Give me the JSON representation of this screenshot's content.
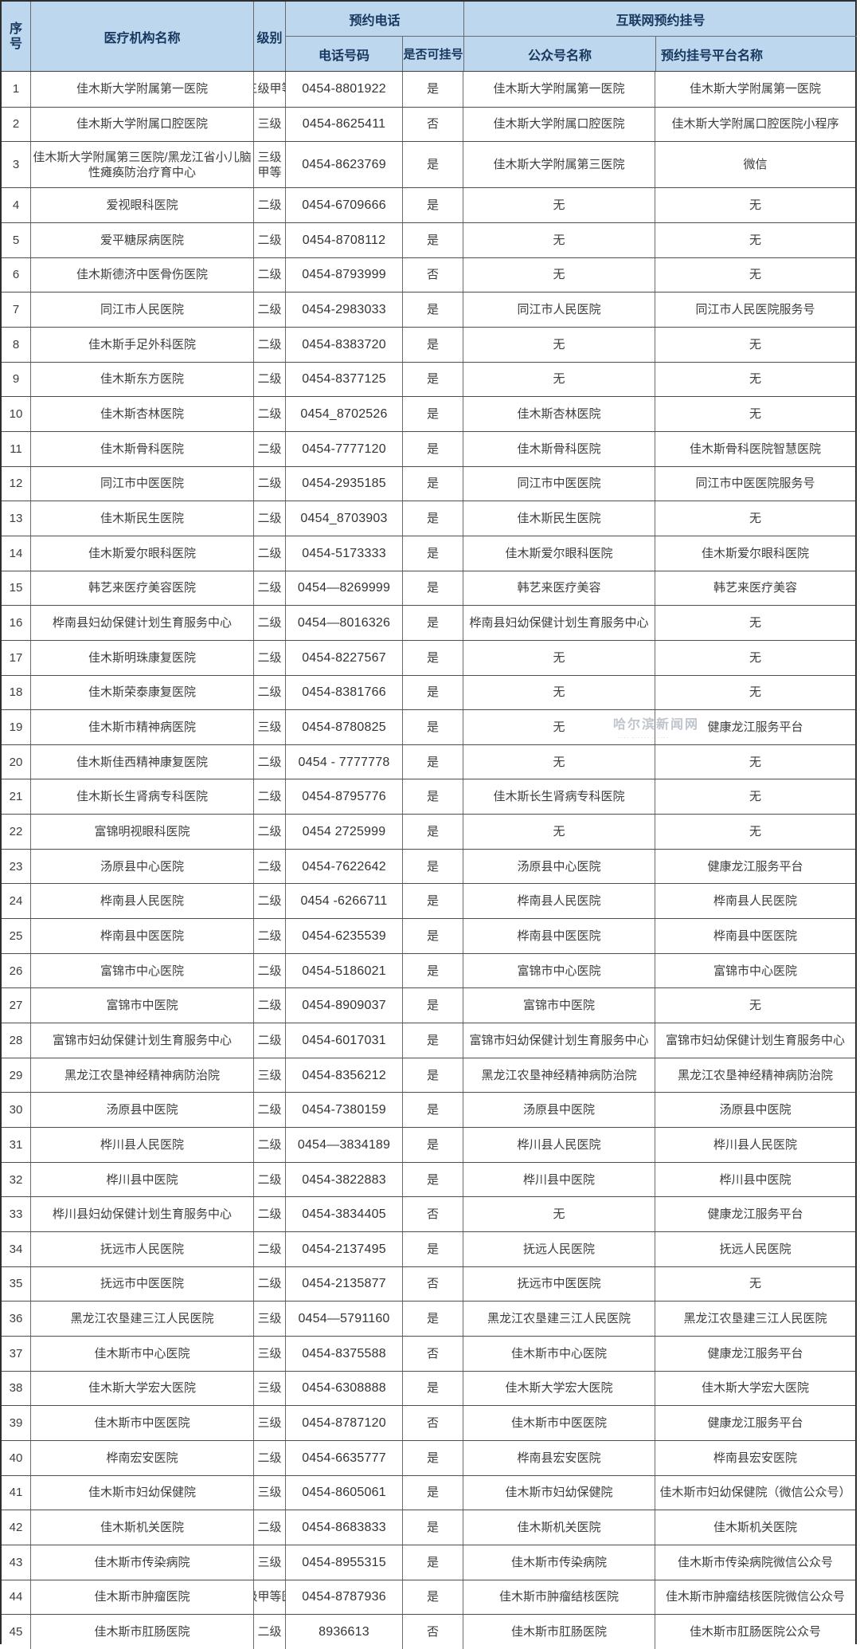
{
  "table": {
    "headers": {
      "no": "序号",
      "name": "医疗机构名称",
      "level": "级别",
      "phone_group": "预约电话",
      "phone": "电话号码",
      "bookable": "是否可挂号",
      "internet_group": "互联网预约挂号",
      "account": "公众号名称",
      "platform": "预约挂号平台名称"
    },
    "rows": [
      {
        "no": "1",
        "name": "佳木斯大学附属第一医院",
        "level": "三级甲等",
        "level_clip": true,
        "phone": "0454-8801922",
        "bookable": "是",
        "account": "佳木斯大学附属第一医院",
        "platform": "佳木斯大学附属第一医院"
      },
      {
        "no": "2",
        "name": "佳木斯大学附属口腔医院",
        "level": "三级",
        "phone": "0454-8625411",
        "bookable": "否",
        "account": "佳木斯大学附属口腔医院",
        "platform": "佳木斯大学附属口腔医院小程序"
      },
      {
        "no": "3",
        "name": "佳木斯大学附属第三医院/黑龙江省小儿脑性瘫痪防治疗育中心",
        "level": "三级甲等",
        "tall": true,
        "phone": "0454-8623769",
        "bookable": "是",
        "account": "佳木斯大学附属第三医院",
        "platform": "微信"
      },
      {
        "no": "4",
        "name": "爱视眼科医院",
        "level": "二级",
        "phone": "0454-6709666",
        "bookable": "是",
        "account": "无",
        "platform": "无"
      },
      {
        "no": "5",
        "name": "爱平糖尿病医院",
        "level": "二级",
        "phone": "0454-8708112",
        "bookable": "是",
        "account": "无",
        "platform": "无"
      },
      {
        "no": "6",
        "name": "佳木斯德济中医骨伤医院",
        "level": "二级",
        "phone": "0454-8793999",
        "bookable": "否",
        "account": "无",
        "platform": "无"
      },
      {
        "no": "7",
        "name": "同江市人民医院",
        "level": "二级",
        "phone": "0454-2983033",
        "bookable": "是",
        "account": "同江市人民医院",
        "platform": "同江市人民医院服务号"
      },
      {
        "no": "8",
        "name": "佳木斯手足外科医院",
        "level": "二级",
        "phone": "0454-8383720",
        "bookable": "是",
        "account": "无",
        "platform": "无"
      },
      {
        "no": "9",
        "name": "佳木斯东方医院",
        "level": "二级",
        "phone": "0454-8377125",
        "bookable": "是",
        "account": "无",
        "platform": "无"
      },
      {
        "no": "10",
        "name": "佳木斯杏林医院",
        "level": "二级",
        "phone": "0454_8702526",
        "bookable": "是",
        "account": "佳木斯杏林医院",
        "platform": "无"
      },
      {
        "no": "11",
        "name": "佳木斯骨科医院",
        "level": "二级",
        "phone": "0454-7777120",
        "bookable": "是",
        "account": "佳木斯骨科医院",
        "platform": "佳木斯骨科医院智慧医院"
      },
      {
        "no": "12",
        "name": "同江市中医医院",
        "level": "二级",
        "phone": "0454-2935185",
        "bookable": "是",
        "account": "同江市中医医院",
        "platform": "同江市中医医院服务号"
      },
      {
        "no": "13",
        "name": "佳木斯民生医院",
        "level": "二级",
        "phone": "0454_8703903",
        "bookable": "是",
        "account": "佳木斯民生医院",
        "platform": "无"
      },
      {
        "no": "14",
        "name": "佳木斯爱尔眼科医院",
        "level": "二级",
        "phone": "0454-5173333",
        "bookable": "是",
        "account": "佳木斯爱尔眼科医院",
        "platform": "佳木斯爱尔眼科医院"
      },
      {
        "no": "15",
        "name": "韩艺来医疗美容医院",
        "level": "二级",
        "phone": "0454—8269999",
        "bookable": "是",
        "account": "韩艺来医疗美容",
        "platform": "韩艺来医疗美容"
      },
      {
        "no": "16",
        "name": "桦南县妇幼保健计划生育服务中心",
        "level": "二级",
        "phone": "0454—8016326",
        "bookable": "是",
        "account": "桦南县妇幼保健计划生育服务中心",
        "platform": "无"
      },
      {
        "no": "17",
        "name": "佳木斯明珠康复医院",
        "level": "二级",
        "phone": "0454-8227567",
        "bookable": "是",
        "account": "无",
        "platform": "无"
      },
      {
        "no": "18",
        "name": "佳木斯荣泰康复医院",
        "level": "二级",
        "phone": "0454-8381766",
        "bookable": "是",
        "account": "无",
        "platform": "无"
      },
      {
        "no": "19",
        "name": "佳木斯市精神病医院",
        "level": "三级",
        "phone": "0454-8780825",
        "bookable": "是",
        "account": "无",
        "platform": "健康龙江服务平台"
      },
      {
        "no": "20",
        "name": "佳木斯佳西精神康复医院",
        "level": "二级",
        "phone": "0454 - 7777778",
        "bookable": "是",
        "account": "无",
        "platform": "无"
      },
      {
        "no": "21",
        "name": "佳木斯长生肾病专科医院",
        "level": "二级",
        "phone": "0454-8795776",
        "bookable": "是",
        "account": "佳木斯长生肾病专科医院",
        "platform": "无"
      },
      {
        "no": "22",
        "name": "富锦明视眼科医院",
        "level": "二级",
        "phone": "0454 2725999",
        "bookable": "是",
        "account": "无",
        "platform": "无"
      },
      {
        "no": "23",
        "name": "汤原县中心医院",
        "level": "二级",
        "phone": "0454-7622642",
        "bookable": "是",
        "account": "汤原县中心医院",
        "platform": "健康龙江服务平台"
      },
      {
        "no": "24",
        "name": "桦南县人民医院",
        "level": "二级",
        "phone": "0454 -6266711",
        "bookable": "是",
        "account": "桦南县人民医院",
        "platform": "桦南县人民医院"
      },
      {
        "no": "25",
        "name": "桦南县中医医院",
        "level": "二级",
        "phone": "0454-6235539",
        "bookable": "是",
        "account": "桦南县中医医院",
        "platform": "桦南县中医医院"
      },
      {
        "no": "26",
        "name": "富锦市中心医院",
        "level": "二级",
        "phone": "0454-5186021",
        "bookable": "是",
        "account": "富锦市中心医院",
        "platform": "富锦市中心医院"
      },
      {
        "no": "27",
        "name": "富锦市中医院",
        "level": "二级",
        "phone": "0454-8909037",
        "bookable": "是",
        "account": "富锦市中医院",
        "platform": "无"
      },
      {
        "no": "28",
        "name": "富锦市妇幼保健计划生育服务中心",
        "level": "二级",
        "phone": "0454-6017031",
        "bookable": "是",
        "account": "富锦市妇幼保健计划生育服务中心",
        "platform": "富锦市妇幼保健计划生育服务中心"
      },
      {
        "no": "29",
        "name": "黑龙江农垦神经精神病防治院",
        "level": "三级",
        "phone": "0454-8356212",
        "bookable": "是",
        "account": "黑龙江农垦神经精神病防治院",
        "platform": "黑龙江农垦神经精神病防治院"
      },
      {
        "no": "30",
        "name": "汤原县中医院",
        "level": "二级",
        "phone": "0454-7380159",
        "bookable": "是",
        "account": "汤原县中医院",
        "platform": "汤原县中医院"
      },
      {
        "no": "31",
        "name": "桦川县人民医院",
        "level": "二级",
        "phone": "0454—3834189",
        "bookable": "是",
        "account": "桦川县人民医院",
        "platform": "桦川县人民医院"
      },
      {
        "no": "32",
        "name": "桦川县中医院",
        "level": "二级",
        "phone": "0454-3822883",
        "bookable": "是",
        "account": "桦川县中医院",
        "platform": "桦川县中医院"
      },
      {
        "no": "33",
        "name": "桦川县妇幼保健计划生育服务中心",
        "level": "二级",
        "phone": "0454-3834405",
        "bookable": "否",
        "account": "无",
        "platform": "健康龙江服务平台"
      },
      {
        "no": "34",
        "name": "抚远市人民医院",
        "level": "二级",
        "phone": "0454-2137495",
        "bookable": "是",
        "account": "抚远人民医院",
        "platform": "抚远人民医院"
      },
      {
        "no": "35",
        "name": "抚远市中医医院",
        "level": "二级",
        "phone": "0454-2135877",
        "bookable": "否",
        "account": "抚远市中医医院",
        "platform": "无"
      },
      {
        "no": "36",
        "name": "黑龙江农垦建三江人民医院",
        "level": "三级",
        "phone": "0454—5791160",
        "bookable": "是",
        "account": "黑龙江农垦建三江人民医院",
        "platform": "黑龙江农垦建三江人民医院"
      },
      {
        "no": "37",
        "name": "佳木斯市中心医院",
        "level": "三级",
        "phone": "0454-8375588",
        "bookable": "否",
        "account": "佳木斯市中心医院",
        "platform": "健康龙江服务平台"
      },
      {
        "no": "38",
        "name": "佳木斯大学宏大医院",
        "level": "三级",
        "phone": "0454-6308888",
        "bookable": "是",
        "account": "佳木斯大学宏大医院",
        "platform": "佳木斯大学宏大医院"
      },
      {
        "no": "39",
        "name": "佳木斯市中医医院",
        "level": "三级",
        "phone": "0454-8787120",
        "bookable": "否",
        "account": "佳木斯市中医医院",
        "platform": "健康龙江服务平台"
      },
      {
        "no": "40",
        "name": "桦南宏安医院",
        "level": "二级",
        "phone": "0454-6635777",
        "bookable": "是",
        "account": "桦南县宏安医院",
        "platform": "桦南县宏安医院"
      },
      {
        "no": "41",
        "name": "佳木斯市妇幼保健院",
        "level": "三级",
        "phone": "0454-8605061",
        "bookable": "是",
        "account": "佳木斯市妇幼保健院",
        "platform": "佳木斯市妇幼保健院（微信公众号）"
      },
      {
        "no": "42",
        "name": "佳木斯机关医院",
        "level": "二级",
        "phone": "0454-8683833",
        "bookable": "是",
        "account": "佳木斯机关医院",
        "platform": "佳木斯机关医院"
      },
      {
        "no": "43",
        "name": "佳木斯市传染病院",
        "level": "三级",
        "phone": "0454-8955315",
        "bookable": "是",
        "account": "佳木斯市传染病院",
        "platform": "佳木斯市传染病院微信公众号"
      },
      {
        "no": "44",
        "name": "佳木斯市肿瘤医院",
        "level": "三级甲等医院",
        "level_clip": true,
        "phone": "0454-8787936",
        "bookable": "是",
        "account": "佳木斯市肿瘤结核医院",
        "platform": "佳木斯市肿瘤结核医院微信公众号"
      },
      {
        "no": "45",
        "name": "佳木斯市肛肠医院",
        "level": "二级",
        "phone": "8936613",
        "bookable": "否",
        "account": "佳木斯市肛肠医院",
        "platform": "佳木斯市肛肠医院公众号"
      }
    ]
  },
  "watermark": {
    "line1": "哈尔滨新闻网",
    "line2": "···· -····· - ····"
  },
  "colors": {
    "header_bg": "#BDD7EE",
    "header_text": "#17375E",
    "body_text": "#3D3D3D",
    "grid_line": "#4D4D4D"
  }
}
